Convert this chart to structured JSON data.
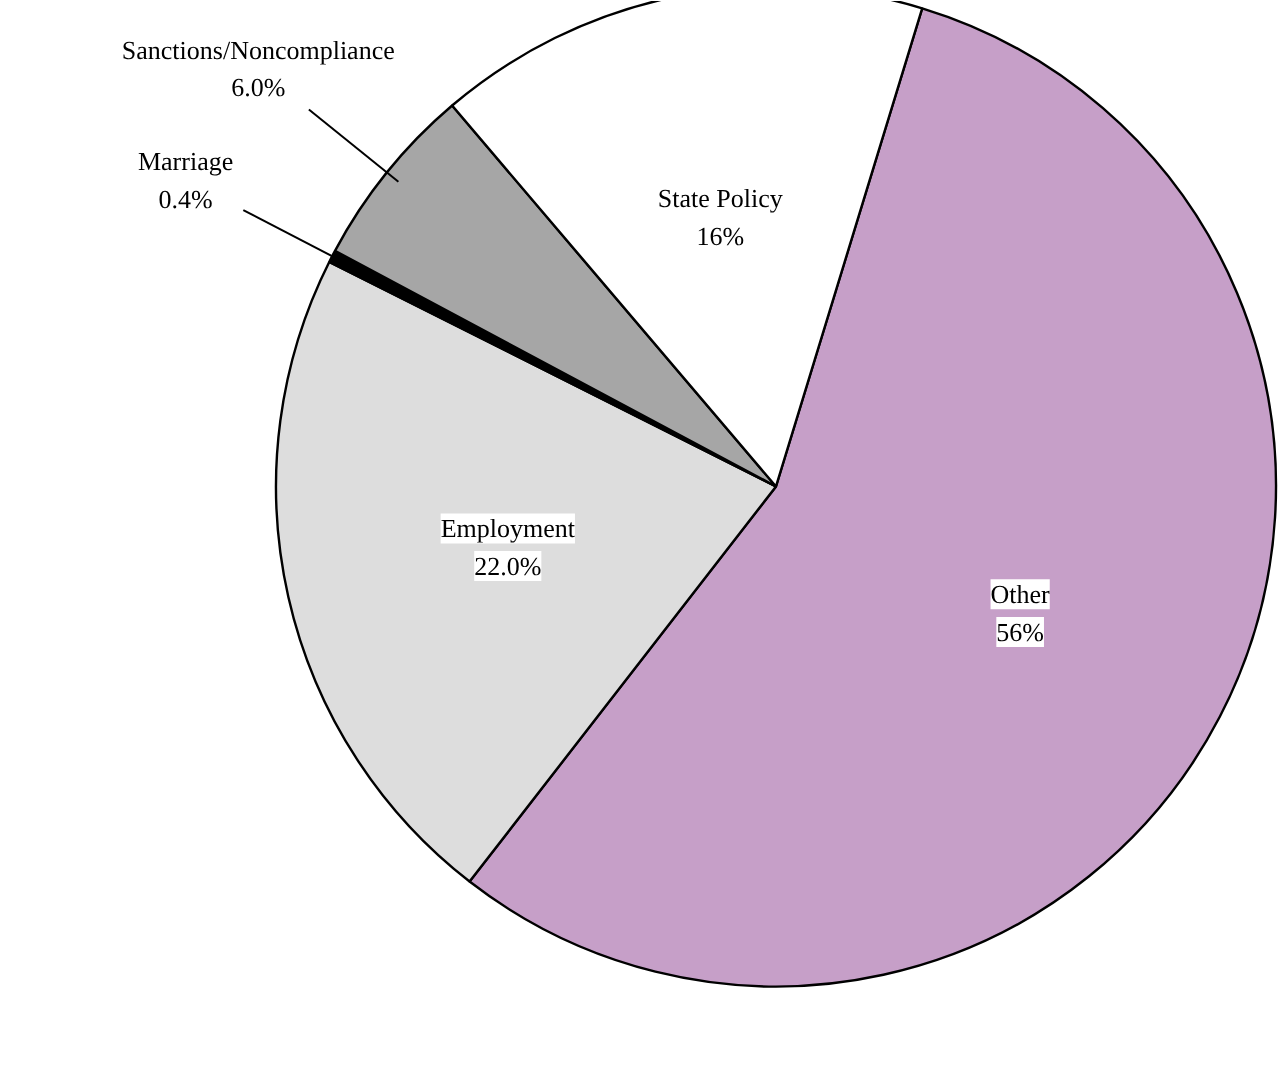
{
  "chart_data": {
    "type": "pie",
    "categories": [
      "Other",
      "Employment",
      "Marriage",
      "Sanctions/Noncompliance",
      "State Policy"
    ],
    "values": [
      56,
      22.0,
      0.4,
      6.0,
      16
    ],
    "value_labels": [
      "56%",
      "22.0%",
      "0.4%",
      "6.0%",
      "16%"
    ],
    "colors": [
      "#c69fc8",
      "#dddddd",
      "#000000",
      "#a6a6a6",
      "#ffffff"
    ]
  }
}
